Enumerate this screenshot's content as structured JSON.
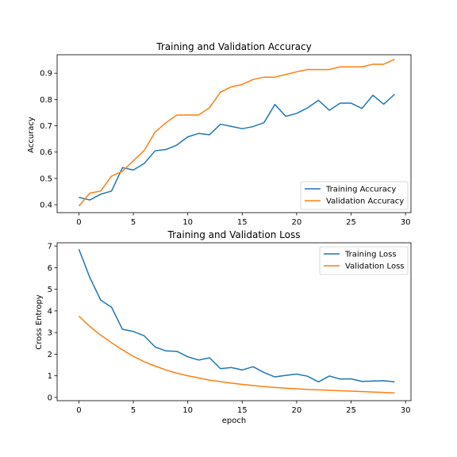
{
  "colors": {
    "training": "#1f77b4",
    "validation": "#ff7f0e",
    "axis": "#000000",
    "legend_border": "#cccccc"
  },
  "chart_data": [
    {
      "type": "line",
      "title": "Training and Validation Accuracy",
      "xlabel": "",
      "ylabel": "Accuracy",
      "xlim": [
        -2,
        30.5
      ],
      "ylim": [
        0.37,
        0.97
      ],
      "xticks": [
        0,
        5,
        10,
        15,
        20,
        25,
        30
      ],
      "yticks": [
        0.4,
        0.5,
        0.6,
        0.7,
        0.8,
        0.9
      ],
      "ytick_labels": [
        "0.4",
        "0.5",
        "0.6",
        "0.7",
        "0.8",
        "0.9"
      ],
      "legend_position": "lower-right",
      "grid": false,
      "x": [
        0,
        1,
        2,
        3,
        4,
        5,
        6,
        7,
        8,
        9,
        10,
        11,
        12,
        13,
        14,
        15,
        16,
        17,
        18,
        19,
        20,
        21,
        22,
        23,
        24,
        25,
        26,
        27,
        28,
        29
      ],
      "series": [
        {
          "name": "Training Accuracy",
          "color_key": "training",
          "values": [
            0.428,
            0.418,
            0.44,
            0.452,
            0.541,
            0.532,
            0.557,
            0.605,
            0.61,
            0.627,
            0.658,
            0.671,
            0.666,
            0.706,
            0.698,
            0.689,
            0.697,
            0.712,
            0.781,
            0.736,
            0.747,
            0.768,
            0.797,
            0.759,
            0.786,
            0.786,
            0.766,
            0.816,
            0.782,
            0.82
          ]
        },
        {
          "name": "Validation Accuracy",
          "color_key": "validation",
          "values": [
            0.395,
            0.444,
            0.452,
            0.509,
            0.527,
            0.567,
            0.606,
            0.676,
            0.712,
            0.741,
            0.741,
            0.741,
            0.769,
            0.828,
            0.848,
            0.857,
            0.876,
            0.885,
            0.885,
            0.895,
            0.905,
            0.914,
            0.914,
            0.914,
            0.924,
            0.924,
            0.924,
            0.934,
            0.934,
            0.953
          ]
        }
      ]
    },
    {
      "type": "line",
      "title": "Training and Validation Loss",
      "xlabel": "epoch",
      "ylabel": "Cross Entropy",
      "xlim": [
        -2,
        30.5
      ],
      "ylim": [
        -0.15,
        7.15
      ],
      "xticks": [
        0,
        5,
        10,
        15,
        20,
        25,
        30
      ],
      "yticks": [
        0,
        1,
        2,
        3,
        4,
        5,
        6,
        7
      ],
      "ytick_labels": [
        "0",
        "1",
        "2",
        "3",
        "4",
        "5",
        "6",
        "7"
      ],
      "legend_position": "upper-right",
      "grid": false,
      "x": [
        0,
        1,
        2,
        3,
        4,
        5,
        6,
        7,
        8,
        9,
        10,
        11,
        12,
        13,
        14,
        15,
        16,
        17,
        18,
        19,
        20,
        21,
        22,
        23,
        24,
        25,
        26,
        27,
        28,
        29
      ],
      "series": [
        {
          "name": "Training Loss",
          "color_key": "training",
          "values": [
            6.85,
            5.55,
            4.5,
            4.17,
            3.15,
            3.05,
            2.85,
            2.33,
            2.15,
            2.13,
            1.88,
            1.73,
            1.83,
            1.33,
            1.38,
            1.27,
            1.42,
            1.15,
            0.95,
            1.02,
            1.08,
            0.98,
            0.72,
            0.99,
            0.85,
            0.86,
            0.74,
            0.76,
            0.77,
            0.72
          ]
        },
        {
          "name": "Validation Loss",
          "color_key": "validation",
          "values": [
            3.76,
            3.28,
            2.88,
            2.53,
            2.2,
            1.9,
            1.65,
            1.45,
            1.27,
            1.12,
            1.0,
            0.9,
            0.8,
            0.73,
            0.66,
            0.6,
            0.55,
            0.5,
            0.46,
            0.43,
            0.4,
            0.37,
            0.35,
            0.33,
            0.31,
            0.29,
            0.27,
            0.25,
            0.23,
            0.21
          ]
        }
      ]
    }
  ]
}
